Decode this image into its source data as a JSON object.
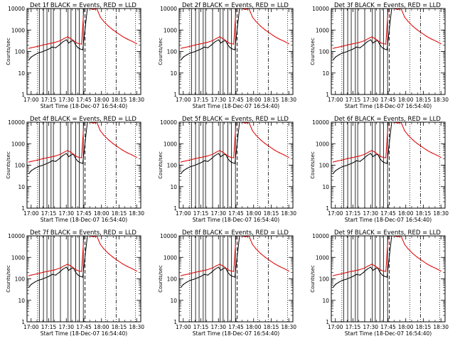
{
  "common": {
    "xlabel": "Start Time (18-Dec-07 16:54:40)",
    "ylabel": "Counts/sec",
    "x_ticks": [
      "17:00",
      "17:15",
      "17:30",
      "17:45",
      "18:00",
      "18:15",
      "18:30"
    ],
    "x_tick_minutes": [
      0,
      15,
      30,
      45,
      60,
      75,
      90
    ],
    "xlim_minutes_after_17_00": [
      -3.5,
      93.5
    ],
    "y_scale": "log",
    "ylim": [
      1,
      10000
    ],
    "y_ticks": [
      "1",
      "10",
      "100",
      "1000",
      "10000"
    ],
    "colors": {
      "events": "#000000",
      "lld": "#dd0000",
      "axes": "#000000"
    }
  },
  "panels": [
    {
      "title": "Det 1f BLACK = Events, RED = LLD"
    },
    {
      "title": "Det 2f BLACK = Events, RED = LLD"
    },
    {
      "title": "Det 3f BLACK = Events, RED = LLD"
    },
    {
      "title": "Det 4f BLACK = Events, RED = LLD"
    },
    {
      "title": "Det 5f BLACK = Events, RED = LLD"
    },
    {
      "title": "Det 6f BLACK = Events, RED = LLD"
    },
    {
      "title": "Det 7f BLACK = Events, RED = LLD"
    },
    {
      "title": "Det 8f BLACK = Events, RED = LLD"
    },
    {
      "title": "Det 9f BLACK = Events, RED = LLD"
    }
  ],
  "chart_data": {
    "type": "line",
    "layout": "3x3 grid of identical-format panels",
    "x_unit": "minutes after 17:00 (18-Dec-07)",
    "series": [
      {
        "name": "Events",
        "x": [
          -2,
          0,
          3,
          6,
          9,
          12,
          15,
          18,
          21,
          24,
          27,
          30,
          32,
          34,
          36,
          38,
          40,
          42,
          44,
          48,
          52,
          56,
          60,
          64,
          68,
          72,
          76,
          80,
          84,
          88
        ],
        "values": [
          40,
          55,
          70,
          85,
          95,
          110,
          130,
          160,
          150,
          200,
          280,
          350,
          250,
          300,
          320,
          200,
          150,
          130,
          120,
          10000,
          10000,
          10000,
          10000,
          10000,
          10000,
          10000,
          10000,
          10000,
          10000,
          10000
        ]
      },
      {
        "name": "LLD",
        "x": [
          -2,
          0,
          5,
          10,
          15,
          20,
          25,
          28,
          31,
          33,
          35,
          37,
          39,
          41,
          43,
          45,
          47,
          50,
          53,
          56,
          59,
          62,
          66,
          70,
          74,
          78,
          82,
          86,
          90
        ],
        "values": [
          140,
          150,
          170,
          200,
          230,
          260,
          320,
          400,
          480,
          420,
          360,
          300,
          250,
          230,
          220,
          10000,
          10000,
          10000,
          9000,
          10000,
          4000,
          2500,
          1500,
          1000,
          700,
          500,
          380,
          300,
          230
        ]
      }
    ],
    "vertical_lines": {
      "solid_minutes": [
        7.0,
        10.5,
        13.5,
        17.0,
        19.0,
        25.0,
        31.5,
        34.0,
        38.0,
        41.0,
        44.5
      ],
      "dotted_minutes": [
        5.5,
        63.5,
        89.0
      ],
      "dashed_minutes": [
        46.0
      ],
      "dashdot_minutes": [
        72.5
      ]
    }
  }
}
